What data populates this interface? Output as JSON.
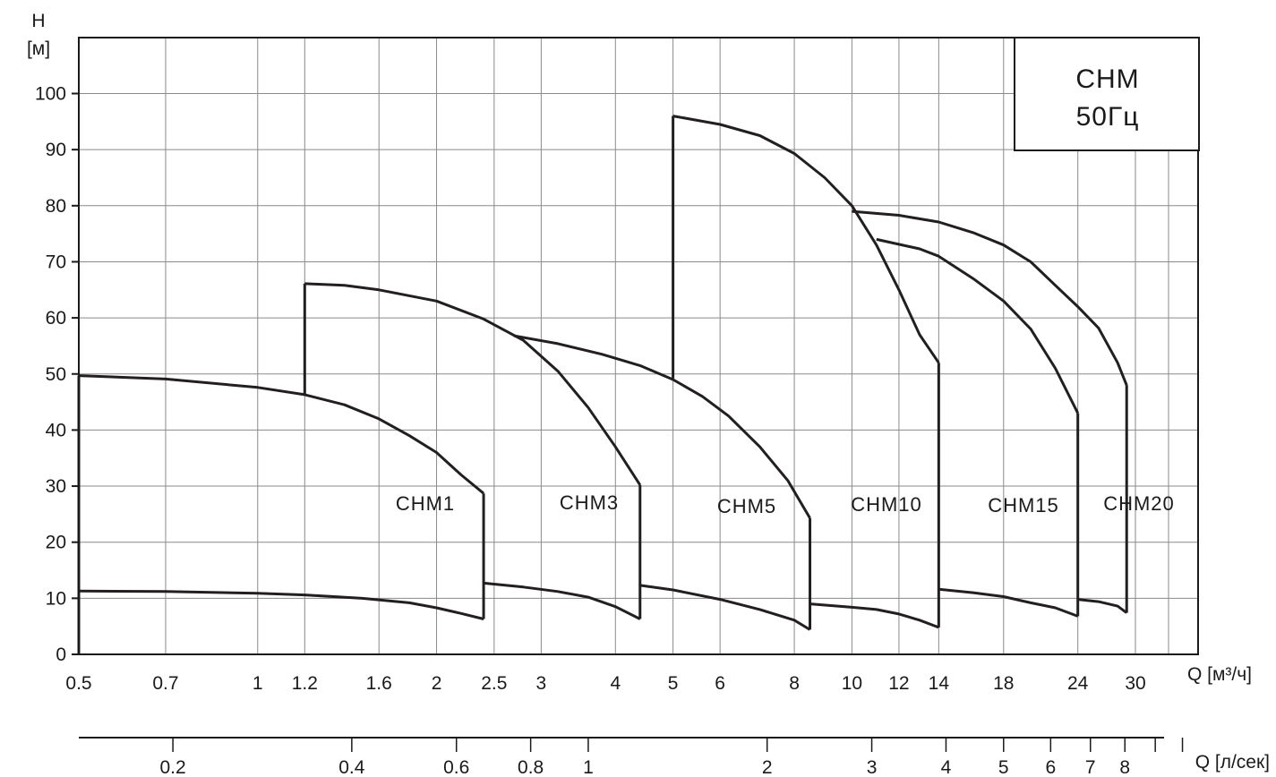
{
  "chart_data": {
    "type": "line",
    "ylabel": "H",
    "ylabel_unit": "[м]",
    "xlabel": "Q [м³/ч]",
    "xlabel2": "Q [л/сек]",
    "x_scale": "log",
    "ylim": [
      0,
      105
    ],
    "xlim": [
      0.5,
      40
    ],
    "grid": true,
    "yticks": [
      0,
      10,
      20,
      30,
      40,
      50,
      60,
      70,
      80,
      90,
      100
    ],
    "xticks": [
      0.5,
      0.7,
      1,
      1.2,
      1.6,
      2,
      2.5,
      3,
      4,
      5,
      6,
      8,
      10,
      12,
      14,
      18,
      24,
      30
    ],
    "xtick_labels": [
      "0.5",
      "0.7",
      "1",
      "1.2",
      "1.6",
      "2",
      "2.5",
      "3",
      "4",
      "5",
      "6",
      "8",
      "10",
      "12",
      "14",
      "18",
      "24",
      "30"
    ],
    "x2ticks": [
      0.2,
      0.4,
      0.6,
      0.8,
      1,
      2,
      3,
      4,
      5,
      6,
      7,
      8
    ],
    "x2tick_labels": [
      "0.2",
      "0.4",
      "0.6",
      "0.8",
      "1",
      "2",
      "3",
      "4",
      "5",
      "6",
      "7",
      "8"
    ],
    "legend_box": {
      "line1": "CHM",
      "line2": "50Гц",
      "position": "top-right"
    },
    "series": [
      {
        "name": "CHM1",
        "upper": [
          [
            0.5,
            49.7
          ],
          [
            0.7,
            49.1
          ],
          [
            1,
            47.6
          ],
          [
            1.2,
            46.3
          ],
          [
            1.4,
            44.5
          ],
          [
            1.6,
            42
          ],
          [
            1.8,
            39
          ],
          [
            2,
            36
          ],
          [
            2.2,
            32
          ],
          [
            2.4,
            28.7
          ]
        ],
        "lower": [
          [
            0.5,
            11.3
          ],
          [
            0.7,
            11.2
          ],
          [
            1,
            10.9
          ],
          [
            1.2,
            10.6
          ],
          [
            1.5,
            10
          ],
          [
            1.8,
            9.2
          ],
          [
            2,
            8.3
          ],
          [
            2.2,
            7.3
          ],
          [
            2.4,
            6.3
          ]
        ],
        "q_min": 0.5,
        "q_max": 2.4
      },
      {
        "name": "CHM3",
        "upper": [
          [
            1.2,
            66.1
          ],
          [
            1.4,
            65.8
          ],
          [
            1.6,
            65
          ],
          [
            2,
            63
          ],
          [
            2.4,
            59.8
          ],
          [
            2.8,
            56
          ],
          [
            3.2,
            50.5
          ],
          [
            3.6,
            44
          ],
          [
            4,
            37
          ],
          [
            4.4,
            30.2
          ]
        ],
        "lower": [
          [
            2.4,
            12.7
          ],
          [
            2.8,
            12
          ],
          [
            3.2,
            11.2
          ],
          [
            3.6,
            10.2
          ],
          [
            4,
            8.5
          ],
          [
            4.4,
            6.3
          ]
        ],
        "q_min": 1.2,
        "q_max": 4.4
      },
      {
        "name": "CHM5",
        "upper": [
          [
            2.7,
            56.8
          ],
          [
            3.2,
            55.4
          ],
          [
            3.8,
            53.5
          ],
          [
            4.4,
            51.5
          ],
          [
            5,
            49
          ],
          [
            5.6,
            46
          ],
          [
            6.2,
            42.5
          ],
          [
            7,
            37
          ],
          [
            7.8,
            31
          ],
          [
            8.5,
            24.3
          ]
        ],
        "lower": [
          [
            4.4,
            12.3
          ],
          [
            5,
            11.5
          ],
          [
            6,
            9.8
          ],
          [
            7,
            8
          ],
          [
            8,
            6.1
          ],
          [
            8.5,
            4.4
          ]
        ],
        "q_min": 2.7,
        "q_max": 8.5
      },
      {
        "name": "CHM10",
        "upper": [
          [
            5,
            96
          ],
          [
            6,
            94.5
          ],
          [
            7,
            92.5
          ],
          [
            8,
            89.3
          ],
          [
            9,
            85
          ],
          [
            10,
            80
          ],
          [
            11,
            73
          ],
          [
            12,
            65
          ],
          [
            13,
            57
          ],
          [
            14,
            52
          ]
        ],
        "lower": [
          [
            8.5,
            9
          ],
          [
            10,
            8.4
          ],
          [
            11,
            8
          ],
          [
            12,
            7.2
          ],
          [
            13,
            6.1
          ],
          [
            14,
            4.8
          ]
        ],
        "q_min": 5,
        "q_max": 14
      },
      {
        "name": "CHM15",
        "upper": [
          [
            11,
            74
          ],
          [
            13,
            72.3
          ],
          [
            14,
            71
          ],
          [
            16,
            67
          ],
          [
            18,
            63
          ],
          [
            20,
            58
          ],
          [
            22,
            51
          ],
          [
            24,
            43
          ]
        ],
        "lower": [
          [
            14,
            11.6
          ],
          [
            16,
            11
          ],
          [
            18,
            10.3
          ],
          [
            20,
            9.2
          ],
          [
            22,
            8.3
          ],
          [
            24,
            6.8
          ]
        ],
        "q_min": 11,
        "q_max": 24
      },
      {
        "name": "CHM20",
        "upper": [
          [
            10,
            79
          ],
          [
            12,
            78.3
          ],
          [
            14,
            77.1
          ],
          [
            16,
            75.2
          ],
          [
            18,
            73
          ],
          [
            20,
            70
          ],
          [
            22,
            65.8
          ],
          [
            24,
            62
          ],
          [
            26,
            58.2
          ],
          [
            28,
            52
          ],
          [
            29,
            48
          ]
        ],
        "lower": [
          [
            24,
            9.8
          ],
          [
            26,
            9.4
          ],
          [
            28,
            8.6
          ],
          [
            29,
            7.4
          ]
        ],
        "q_min": 24,
        "q_max": 29
      }
    ]
  }
}
